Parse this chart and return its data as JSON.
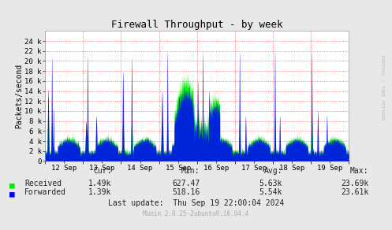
{
  "title": "Firewall Throughput - by week",
  "ylabel": "Packets/second",
  "right_label": "RRDTOOL / TOBI OETIKER",
  "bg_color": "#e8e8e8",
  "plot_bg_color": "#ffffff",
  "received_color": "#00ee00",
  "forwarded_color": "#0000ff",
  "ylim": [
    0,
    26000
  ],
  "yticks": [
    0,
    2000,
    4000,
    6000,
    8000,
    10000,
    12000,
    14000,
    16000,
    18000,
    20000,
    22000,
    24000
  ],
  "ytick_labels": [
    "0",
    "2 k",
    "4 k",
    "6 k",
    "8 k",
    "10 k",
    "12 k",
    "14 k",
    "16 k",
    "18 k",
    "20 k",
    "22 k",
    "24 k"
  ],
  "xticklabels": [
    "12 Sep",
    "13 Sep",
    "14 Sep",
    "15 Sep",
    "16 Sep",
    "17 Sep",
    "18 Sep",
    "19 Sep"
  ],
  "cur_received": "1.49k",
  "cur_forwarded": "1.39k",
  "min_received": "627.47",
  "min_forwarded": "518.16",
  "avg_received": "5.63k",
  "avg_forwarded": "5.54k",
  "max_received": "23.69k",
  "max_forwarded": "23.61k",
  "footer_update": "Last update:  Thu Sep 19 22:00:04 2024",
  "footer_munin": "Munin 2.0.25-2ubuntu0.16.04.4"
}
